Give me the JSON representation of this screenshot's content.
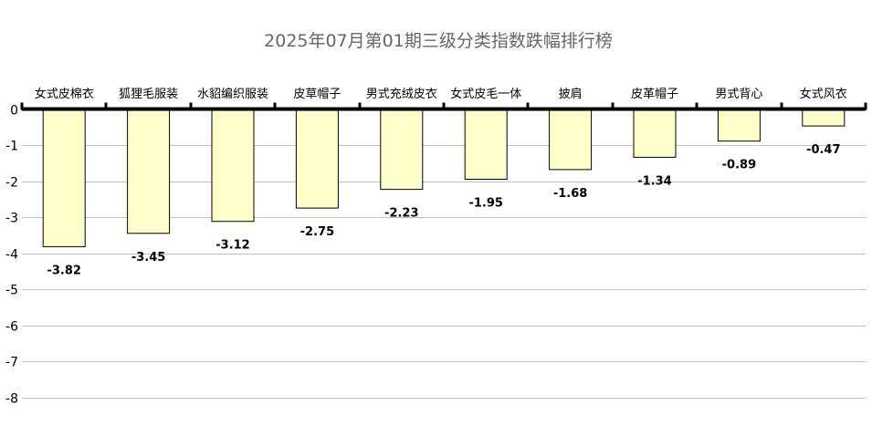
{
  "chart_data": {
    "type": "bar",
    "title": "2025年07月第01期三级分类指数跌幅排行榜",
    "categories": [
      "女式皮棉衣",
      "狐狸毛服装",
      "水貂编织服装",
      "皮草帽子",
      "男式充绒皮衣",
      "女式皮毛一体",
      "披肩",
      "皮革帽子",
      "男式背心",
      "女式风衣"
    ],
    "values": [
      -3.82,
      -3.45,
      -3.12,
      -2.75,
      -2.23,
      -1.95,
      -1.68,
      -1.34,
      -0.89,
      -0.47
    ],
    "data_labels": [
      "-3.82",
      "-3.45",
      "-3.12",
      "-2.75",
      "-2.23",
      "-1.95",
      "-1.68",
      "-1.34",
      "-0.89",
      "-0.47"
    ],
    "y_ticks": [
      0,
      -1,
      -2,
      -3,
      -4,
      -5,
      -6,
      -7,
      -8
    ],
    "y_tick_labels": [
      "0",
      "-1",
      "-2",
      "-3",
      "-4",
      "-5",
      "-6",
      "-7",
      "-8"
    ],
    "ylim": [
      -8,
      0
    ],
    "xlabel": "",
    "ylabel": "",
    "grid": true,
    "x_axis_position": "top",
    "bar_color": "#ffffcc",
    "bar_border_color": "#000000",
    "grid_color": "#c0c0c0",
    "title_color": "#666666"
  }
}
